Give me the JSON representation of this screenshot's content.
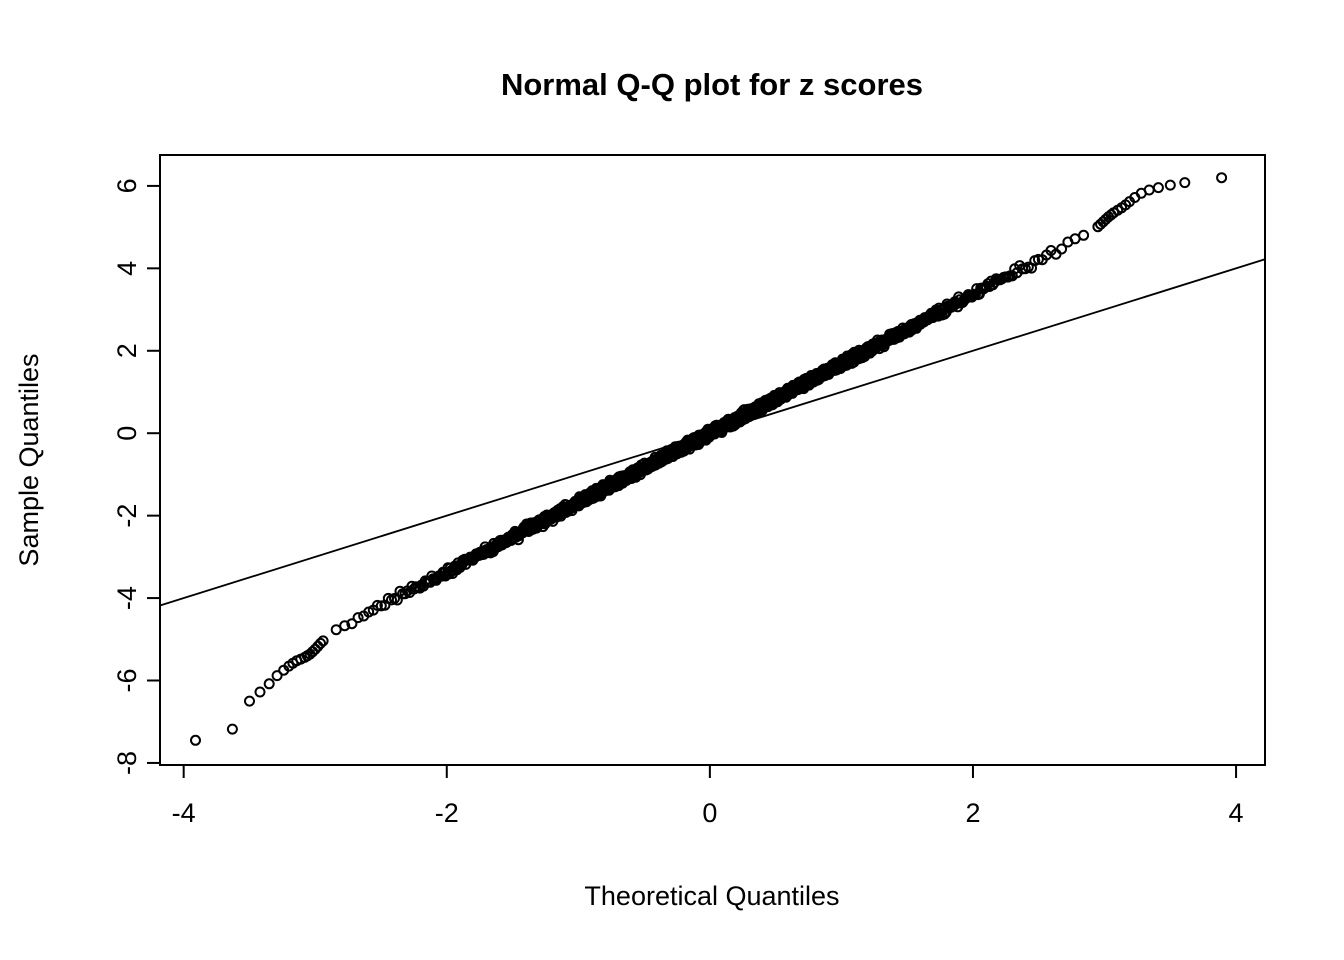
{
  "page": {
    "background": "#ffffff",
    "foreground": "#000000"
  },
  "chart_data": {
    "type": "scatter",
    "title": "Normal Q-Q plot for z scores",
    "xlabel": "Theoretical Quantiles",
    "ylabel": "Sample Quantiles",
    "xlim": [
      -4.18,
      4.22
    ],
    "ylim": [
      -8.05,
      6.75
    ],
    "x_ticks": [
      -4,
      -2,
      0,
      2,
      4
    ],
    "y_ticks": [
      -8,
      -6,
      -4,
      -2,
      0,
      2,
      4,
      6
    ],
    "grid": false,
    "legend": null,
    "marker": {
      "shape": "open-circle",
      "color": "#000000",
      "radius_px": 4.5,
      "stroke_px": 2
    },
    "reference_line": {
      "x1": -4.18,
      "y1": -4.18,
      "x2": 4.22,
      "y2": 4.22,
      "slope": 1,
      "intercept": 0,
      "color": "#000000",
      "note": "qqline reference, approximately y = x"
    },
    "dense_band": {
      "note": "central Q-Q points form a dense straight band steeper than the reference line (heavy-tailed sample)",
      "x_min": -2.92,
      "x_max": 2.92,
      "slope": 1.68,
      "intercept": 0,
      "n_points": 2000,
      "jitter": 0.05
    },
    "left_tail_points": [
      [
        -3.91,
        -7.45
      ],
      [
        -3.63,
        -7.18
      ],
      [
        -3.5,
        -6.5
      ],
      [
        -3.42,
        -6.28
      ],
      [
        -3.35,
        -6.08
      ],
      [
        -3.29,
        -5.88
      ],
      [
        -3.24,
        -5.75
      ],
      [
        -3.2,
        -5.65
      ],
      [
        -3.17,
        -5.58
      ],
      [
        -3.14,
        -5.52
      ],
      [
        -3.11,
        -5.48
      ],
      [
        -3.08,
        -5.44
      ],
      [
        -3.06,
        -5.4
      ],
      [
        -3.04,
        -5.36
      ],
      [
        -3.02,
        -5.3
      ],
      [
        -3.0,
        -5.24
      ],
      [
        -2.98,
        -5.17
      ],
      [
        -2.96,
        -5.1
      ],
      [
        -2.94,
        -5.04
      ]
    ],
    "right_tail_points": [
      [
        3.89,
        6.2
      ],
      [
        3.61,
        6.08
      ],
      [
        3.5,
        6.02
      ],
      [
        3.41,
        5.96
      ],
      [
        3.34,
        5.9
      ],
      [
        3.28,
        5.82
      ],
      [
        3.23,
        5.72
      ],
      [
        3.19,
        5.62
      ],
      [
        3.16,
        5.54
      ],
      [
        3.13,
        5.47
      ],
      [
        3.1,
        5.41
      ],
      [
        3.07,
        5.35
      ],
      [
        3.05,
        5.3
      ],
      [
        3.03,
        5.25
      ],
      [
        3.01,
        5.19
      ],
      [
        2.99,
        5.13
      ],
      [
        2.97,
        5.07
      ],
      [
        2.95,
        5.01
      ]
    ]
  }
}
